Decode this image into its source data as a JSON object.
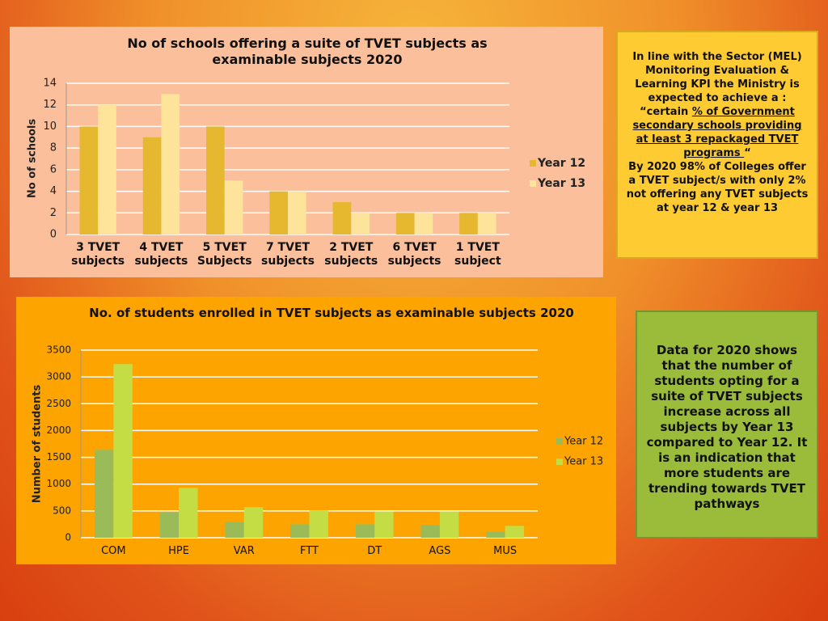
{
  "chart_data": [
    {
      "type": "bar",
      "title": "No of schools offering a suite of TVET subjects as examinable subjects 2020",
      "y_label": "No of schools",
      "categories": [
        "3  TVET subjects",
        "4 TVET subjects",
        "5 TVET Subjects",
        "7 TVET subjects",
        "2 TVET subjects",
        "6 TVET subjects",
        "1 TVET subject"
      ],
      "series": [
        {
          "name": "Year 12",
          "color": "#e5b830",
          "values": [
            10,
            9,
            10,
            4,
            3,
            2,
            2
          ]
        },
        {
          "name": "Year 13",
          "color": "#fde49a",
          "values": [
            12,
            13,
            5,
            4,
            2,
            2,
            2
          ]
        }
      ],
      "ylim": [
        0,
        14
      ],
      "yticks": [
        0,
        2,
        4,
        6,
        8,
        10,
        12,
        14
      ],
      "grid": true,
      "legend": "right"
    },
    {
      "type": "bar",
      "title": "No. of students enrolled in TVET subjects as examinable subjects 2020",
      "y_label": "Number of students",
      "categories": [
        "COM",
        "HPE",
        "VAR",
        "FTT",
        "DT",
        "AGS",
        "MUS"
      ],
      "series": [
        {
          "name": "Year 12",
          "color": "#9bbb59",
          "values": [
            1640,
            470,
            290,
            250,
            250,
            240,
            110
          ]
        },
        {
          "name": "Year 13",
          "color": "#c5dd45",
          "values": [
            3240,
            930,
            570,
            510,
            490,
            490,
            220
          ]
        }
      ],
      "ylim": [
        0,
        3500
      ],
      "yticks": [
        0,
        500,
        1000,
        1500,
        2000,
        2500,
        3000,
        3500
      ],
      "grid": true,
      "legend": "right"
    }
  ],
  "note_box": {
    "intro": "In line with the Sector (MEL) Monitoring Evaluation & Learning KPI  the Ministry is expected to achieve a :",
    "quote_open": "“certain ",
    "quote_underlined": "% of Government secondary schools providing at least 3 repackaged TVET programs ",
    "quote_close": "“",
    "conclusion": "By 2020 98% of Colleges offer a TVET subject/s  with only 2% not offering any TVET subjects  at year 12 & year 13"
  },
  "summary_box": {
    "text": "Data for 2020 shows that the number of students opting for a suite of  TVET subjects increase across all subjects by Year 13 compared to Year 12. It is an indication that more students are trending towards TVET pathways"
  }
}
